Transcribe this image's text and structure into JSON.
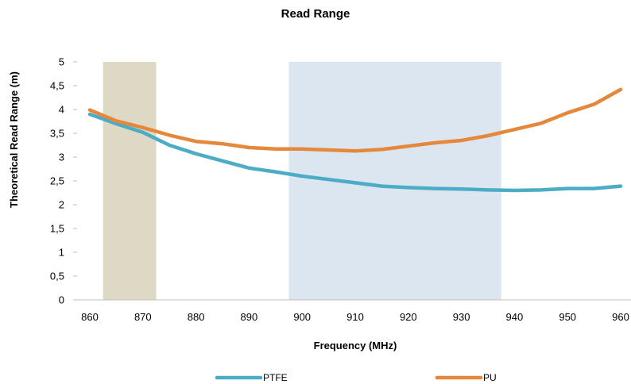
{
  "chart_data": {
    "type": "line",
    "title": "Read Range",
    "xlabel": "Frequency (MHz)",
    "ylabel": "Theoretical Read Range (m)",
    "xlim": [
      860,
      960
    ],
    "ylim": [
      0,
      5
    ],
    "x_ticks": [
      "860",
      "870",
      "880",
      "890",
      "900",
      "910",
      "920",
      "930",
      "940",
      "950",
      "960"
    ],
    "y_ticks": [
      "0",
      "0,5",
      "1",
      "1,5",
      "2",
      "2,5",
      "3",
      "3,5",
      "4",
      "4,5",
      "5"
    ],
    "grid": false,
    "legend_position": "bottom",
    "shaded_bands": [
      {
        "x_start": 862.5,
        "x_end": 872.5,
        "color": "#ddd9c4"
      },
      {
        "x_start": 897.5,
        "x_end": 937.5,
        "color": "#dce6f1"
      }
    ],
    "x": [
      860,
      865,
      870,
      875,
      880,
      885,
      890,
      895,
      900,
      905,
      910,
      915,
      920,
      925,
      930,
      935,
      940,
      945,
      950,
      955,
      960
    ],
    "series": [
      {
        "name": "PTFE",
        "color": "#4bacc6",
        "values": [
          3.9,
          3.7,
          3.52,
          3.25,
          3.07,
          2.92,
          2.77,
          2.69,
          2.6,
          2.53,
          2.46,
          2.39,
          2.36,
          2.34,
          2.33,
          2.31,
          2.3,
          2.31,
          2.34,
          2.34,
          2.39
        ]
      },
      {
        "name": "PU",
        "color": "#e6883b",
        "values": [
          3.99,
          3.76,
          3.62,
          3.46,
          3.33,
          3.28,
          3.2,
          3.17,
          3.17,
          3.15,
          3.13,
          3.16,
          3.23,
          3.3,
          3.35,
          3.45,
          3.58,
          3.71,
          3.93,
          4.11,
          4.42
        ]
      }
    ]
  }
}
